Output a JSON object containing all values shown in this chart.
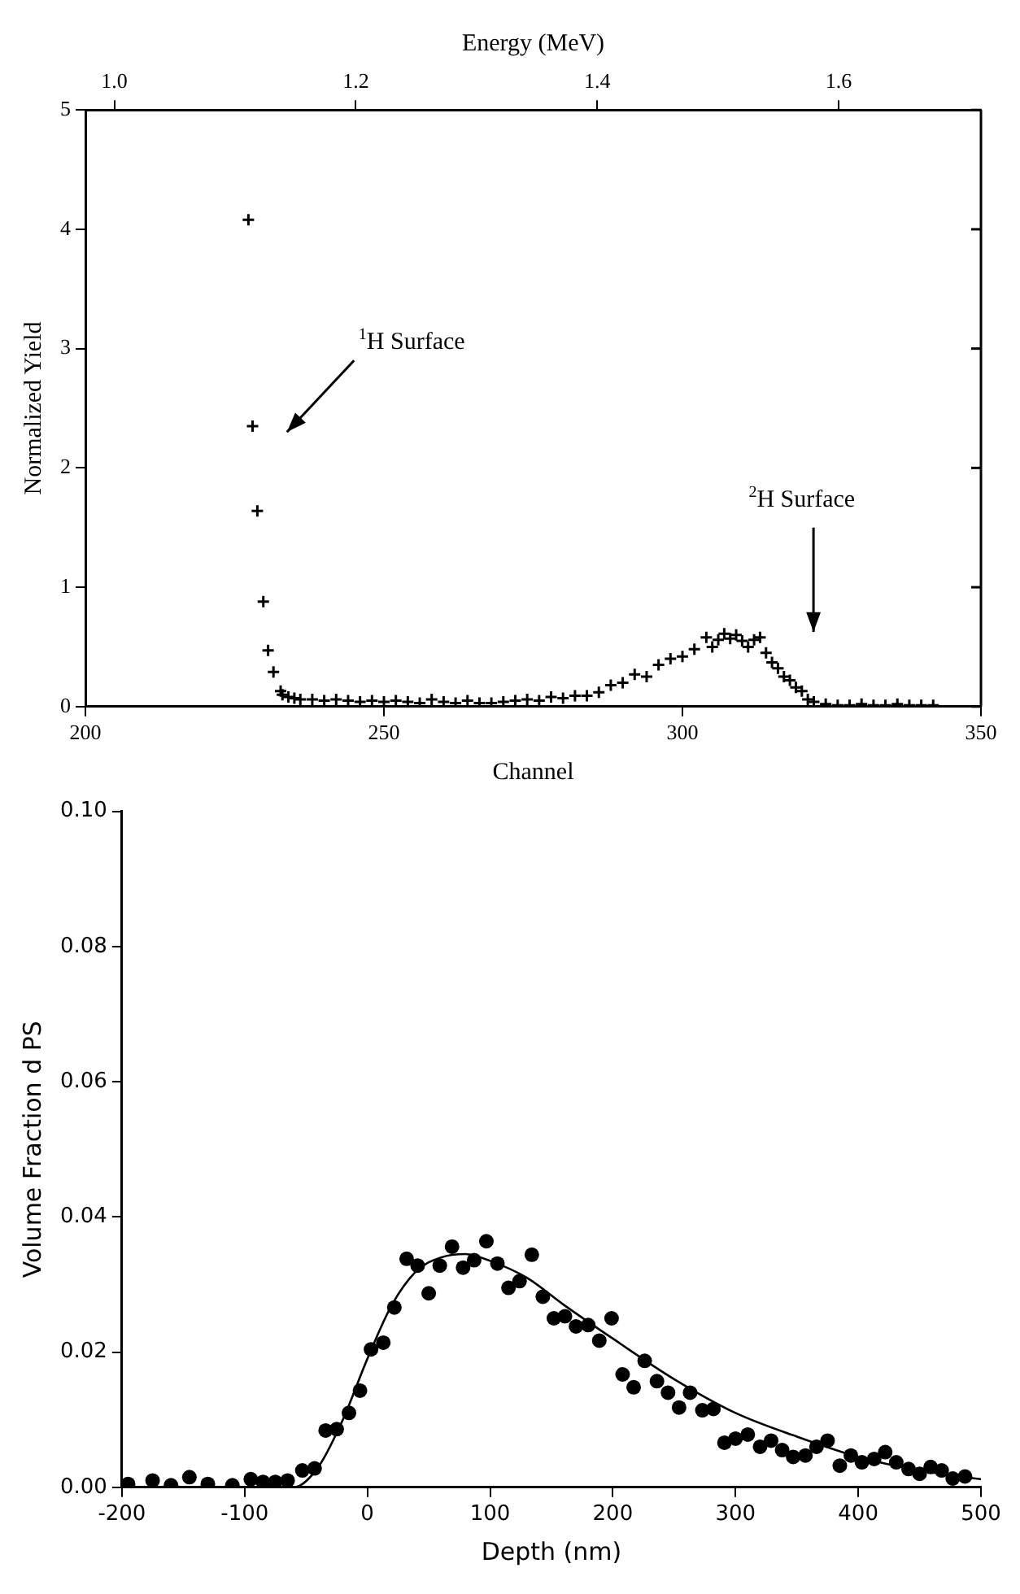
{
  "chart_data": [
    {
      "type": "scatter",
      "xlabel": "Channel",
      "ylabel": "Normalized Yield",
      "x2label": "Energy (MeV)",
      "xlim": [
        200,
        350
      ],
      "xticks": [
        200,
        250,
        300,
        350
      ],
      "ylim": [
        0,
        5
      ],
      "yticks": [
        0,
        1,
        2,
        3,
        4,
        5
      ],
      "x2lim": [
        0.976,
        1.718
      ],
      "x2ticks": [
        {
          "value": 1.0,
          "label": "1.0"
        },
        1.2,
        1.4,
        1.6
      ],
      "series": [
        {
          "type": "scatter",
          "color": "#000000",
          "marker": "cross",
          "x": [
            227.3,
            228,
            228.8,
            229.8,
            230.6,
            231.5,
            232.7,
            233,
            234,
            235,
            236,
            238,
            240,
            242,
            244,
            246,
            248,
            250,
            252,
            254,
            256,
            258,
            260,
            262,
            264,
            266,
            268,
            270,
            272,
            274,
            276,
            278,
            280,
            282,
            284,
            286,
            288,
            290,
            292,
            294,
            296,
            298,
            300,
            302,
            304,
            305,
            306,
            307,
            308,
            309,
            310,
            311,
            312,
            313,
            314,
            315,
            316,
            317,
            318,
            319,
            320,
            321,
            322,
            324,
            326,
            328,
            330,
            332,
            334,
            336,
            338,
            340,
            342
          ],
          "values": [
            4.08,
            2.35,
            1.64,
            0.88,
            0.47,
            0.29,
            0.13,
            0.1,
            0.08,
            0.07,
            0.06,
            0.06,
            0.05,
            0.06,
            0.05,
            0.04,
            0.05,
            0.04,
            0.05,
            0.04,
            0.03,
            0.06,
            0.04,
            0.03,
            0.05,
            0.03,
            0.03,
            0.04,
            0.05,
            0.06,
            0.05,
            0.08,
            0.07,
            0.09,
            0.09,
            0.12,
            0.18,
            0.2,
            0.27,
            0.25,
            0.35,
            0.4,
            0.42,
            0.48,
            0.58,
            0.5,
            0.56,
            0.61,
            0.57,
            0.6,
            0.55,
            0.5,
            0.56,
            0.58,
            0.45,
            0.37,
            0.32,
            0.25,
            0.22,
            0.16,
            0.13,
            0.06,
            0.04,
            0.02,
            0.01,
            0.01,
            0.02,
            0.01,
            0.01,
            0.02,
            0.01,
            0.01,
            0.01
          ]
        }
      ],
      "annotations": [
        "$^{1}$H Surface",
        "$^{2}$H Surface"
      ]
    },
    {
      "type": "scatter",
      "xlabel": "Depth (nm)",
      "ylabel": "Volume Fraction d PS",
      "xlim": [
        -200,
        500
      ],
      "xticks": [
        -200,
        -100,
        0,
        100,
        200,
        300,
        400,
        500
      ],
      "ylim": [
        0,
        0.1
      ],
      "yticks": [
        {
          "value": 0,
          "label": "0.00"
        },
        {
          "value": 0.02,
          "label": "0.02"
        },
        {
          "value": 0.04,
          "label": "0.04"
        },
        {
          "value": 0.06,
          "label": "0.06"
        },
        {
          "value": 0.08,
          "label": "0.08"
        },
        {
          "value": 0.1,
          "label": "0.10"
        }
      ],
      "series": [
        {
          "type": "scatter",
          "color": "#000000",
          "marker": "circle",
          "x": [
            -195,
            -175,
            -160,
            -145,
            -130,
            -110,
            -95,
            -85,
            -75,
            -65,
            -53,
            -43,
            -34,
            -25,
            -15,
            -6,
            3,
            13,
            22,
            32,
            41,
            50,
            59,
            69,
            78,
            87,
            97,
            106,
            115,
            124,
            134,
            143,
            152,
            161,
            170,
            180,
            189,
            199,
            208,
            217,
            226,
            236,
            245,
            254,
            263,
            273,
            282,
            291,
            300,
            310,
            320,
            329,
            338,
            347,
            357,
            366,
            375,
            385,
            394,
            403,
            413,
            422,
            431,
            441,
            450,
            459,
            468,
            477,
            487
          ],
          "values": [
            0.0005,
            0.001,
            0.0003,
            0.0015,
            0.0005,
            0.0003,
            0.0012,
            0.0008,
            0.0008,
            0.001,
            0.0025,
            0.0028,
            0.0084,
            0.0086,
            0.011,
            0.0143,
            0.0204,
            0.0214,
            0.0266,
            0.0338,
            0.0328,
            0.0287,
            0.0328,
            0.0356,
            0.0325,
            0.0336,
            0.0364,
            0.0331,
            0.0295,
            0.0305,
            0.0344,
            0.0282,
            0.025,
            0.0253,
            0.0238,
            0.024,
            0.0217,
            0.025,
            0.0167,
            0.0148,
            0.0187,
            0.0157,
            0.014,
            0.0118,
            0.014,
            0.0114,
            0.0116,
            0.0066,
            0.0072,
            0.0078,
            0.006,
            0.0069,
            0.0055,
            0.0045,
            0.0047,
            0.006,
            0.0069,
            0.0032,
            0.0047,
            0.0037,
            0.0042,
            0.0052,
            0.0037,
            0.0027,
            0.002,
            0.003,
            0.0025,
            0.0013,
            0.0016
          ]
        },
        {
          "type": "line",
          "color": "#000000",
          "marker": "none",
          "x": [
            -200,
            -60,
            -40,
            -20,
            0,
            20,
            40,
            60,
            80,
            100,
            130,
            160,
            200,
            250,
            300,
            350,
            400,
            450,
            500
          ],
          "values": [
            0,
            0,
            0.003,
            0.01,
            0.019,
            0.027,
            0.032,
            0.034,
            0.0345,
            0.0335,
            0.031,
            0.027,
            0.022,
            0.016,
            0.011,
            0.0075,
            0.0045,
            0.0025,
            0.0012
          ]
        }
      ]
    }
  ]
}
